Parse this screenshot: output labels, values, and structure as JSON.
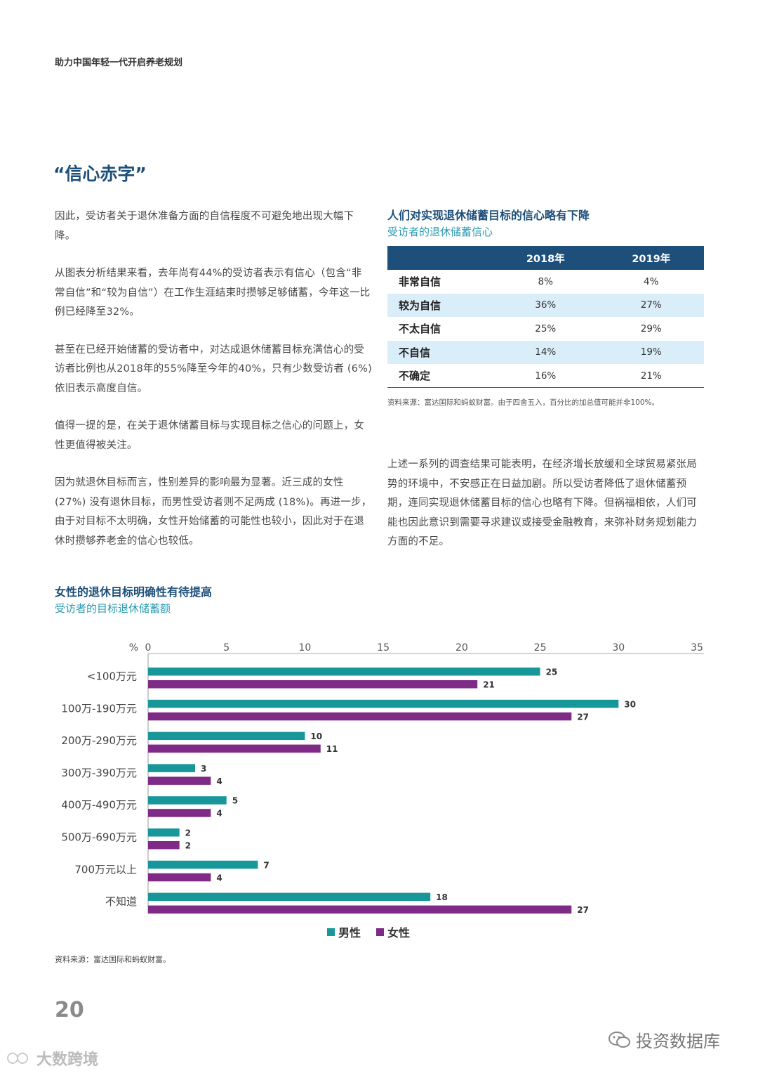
{
  "header": {
    "text": "助力中国年轻一代开启养老规划"
  },
  "section_title": "“信心赤字”",
  "left_paragraphs": [
    "因此，受访者关于退休准备方面的自信程度不可避免地出现大幅下降。",
    "从图表分析结果来看，去年尚有44%的受访者表示有信心（包含“非常自信”和“较为自信”）在工作生涯结束时攒够足够储蓄，今年这一比例已经降至32%。",
    "甚至在已经开始储蓄的受访者中，对达成退休储蓄目标充满信心的受访者比例也从2018年的55%降至今年的40%，只有少数受访者 (6%) 依旧表示高度自信。",
    "值得一提的是，在关于退休储蓄目标与实现目标之信心的问题上，女性更值得被关注。",
    "因为就退休目标而言，性别差异的影响最为显著。近三成的女性 (27%) 没有退休目标，而男性受访者则不足两成 (18%)。再进一步，由于对目标不太明确，女性开始储蓄的可能性也较小，因此对于在退休时攒够养老金的信心也较低。"
  ],
  "confidence_table": {
    "title": "人们对实现退休储蓄目标的信心略有下降",
    "subtitle": "受访者的退休储蓄信心",
    "headers": [
      "",
      "2018年",
      "2019年"
    ],
    "rows": [
      {
        "label": "非常自信",
        "y2018": "8%",
        "y2019": "4%"
      },
      {
        "label": "较为自信",
        "y2018": "36%",
        "y2019": "27%"
      },
      {
        "label": "不太自信",
        "y2018": "25%",
        "y2019": "29%"
      },
      {
        "label": "不自信",
        "y2018": "14%",
        "y2019": "19%"
      },
      {
        "label": "不确定",
        "y2018": "16%",
        "y2019": "21%"
      }
    ],
    "note": "资料来源：富达国际和蚂蚁财富。由于四舍五入，百分比的加总值可能并非100%。"
  },
  "right_paragraph": "上述一系列的调查结果可能表明，在经济增长放缓和全球贸易紧张局势的环境中，不安感正在日益加剧。所以受访者降低了退休储蓄预期，连同实现退休储蓄目标的信心也略有下降。但祸福相依，人们可能也因此意识到需要寻求建议或接受金融教育，来弥补财务规划能力方面的不足。",
  "chart_title": "女性的退休目标明确性有待提高",
  "chart_subtitle": "受访者的目标退休储蓄额",
  "chart_data": {
    "type": "bar",
    "orientation": "horizontal",
    "unit_label": "%",
    "categories": [
      "<100万元",
      "100万-190万元",
      "200万-290万元",
      "300万-390万元",
      "400万-490万元",
      "500万-690万元",
      "700万元以上",
      "不知道"
    ],
    "series": [
      {
        "name": "男性",
        "color": "#17979a",
        "values": [
          25,
          30,
          10,
          3,
          5,
          2,
          7,
          18
        ]
      },
      {
        "name": "女性",
        "color": "#7e2a86",
        "values": [
          21,
          27,
          11,
          4,
          4,
          2,
          4,
          27
        ]
      }
    ],
    "xlim": [
      0,
      35
    ],
    "xticks": [
      0,
      5,
      10,
      15,
      20,
      25,
      30,
      35
    ],
    "legend_position": "bottom-center"
  },
  "chart_source": "资料来源：富达国际和蚂蚁财富。",
  "page_number": "20",
  "watermark_right": "投资数据库",
  "watermark_left": "大数跨境"
}
